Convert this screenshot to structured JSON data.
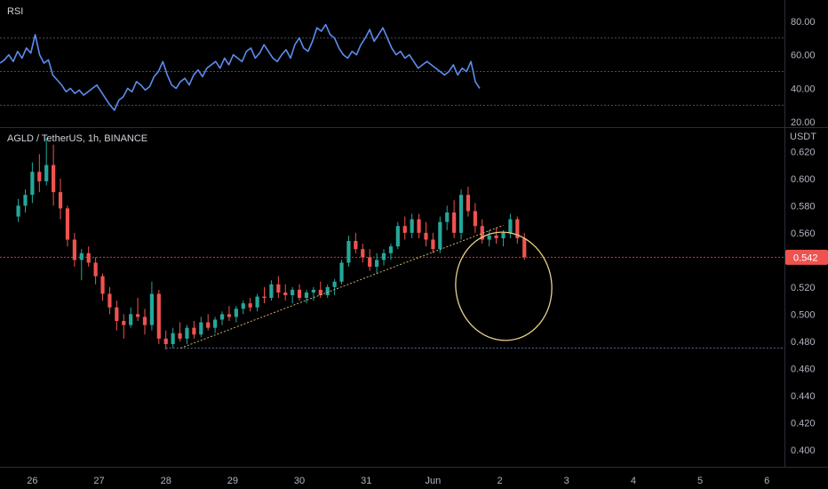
{
  "chart_data": [
    {
      "type": "line",
      "title": "RSI",
      "ylim": [
        18,
        82
      ],
      "y_ticks": [
        "80.00",
        "60.00",
        "40.00",
        "20.00"
      ],
      "y_tick_values": [
        80,
        60,
        40,
        20
      ],
      "levels": [
        70,
        50,
        30
      ],
      "series": [
        {
          "values": [
            55,
            57,
            60,
            56,
            62,
            58,
            64,
            61,
            72,
            60,
            55,
            57,
            48,
            45,
            42,
            38,
            40,
            37,
            39,
            36,
            38,
            40,
            42,
            38,
            34,
            30,
            27,
            33,
            35,
            40,
            38,
            44,
            42,
            39,
            41,
            47,
            50,
            56,
            48,
            42,
            40,
            44,
            46,
            42,
            48,
            51,
            47,
            52,
            54,
            56,
            52,
            58,
            54,
            60,
            58,
            56,
            62,
            64,
            58,
            61,
            66,
            62,
            58,
            56,
            60,
            63,
            58,
            66,
            70,
            64,
            62,
            68,
            76,
            74,
            78,
            72,
            70,
            64,
            60,
            58,
            62,
            60,
            66,
            70,
            75,
            68,
            72,
            76,
            70,
            64,
            60,
            62,
            58,
            60,
            56,
            52,
            54,
            56,
            54,
            52,
            50,
            48,
            50,
            54,
            48,
            52,
            50,
            56,
            44,
            40
          ]
        }
      ],
      "line_color": "#5b8def"
    },
    {
      "type": "candlestick",
      "title": "AGLD / TetherUS, 1h, BINANCE",
      "ylabel": "USDT",
      "ylim": [
        0.3875,
        0.6235
      ],
      "y_ticks": [
        "0.620",
        "0.600",
        "0.580",
        "0.560",
        "0.540",
        "0.520",
        "0.500",
        "0.480",
        "0.460",
        "0.440",
        "0.420",
        "0.400"
      ],
      "y_tick_values": [
        0.62,
        0.6,
        0.58,
        0.56,
        0.54,
        0.52,
        0.5,
        0.48,
        0.46,
        0.44,
        0.42,
        0.4
      ],
      "x_ticks": [
        "26",
        "27",
        "28",
        "29",
        "30",
        "31",
        "Jun",
        "2",
        "3",
        "4",
        "5",
        "6"
      ],
      "x_tick_values": [
        2,
        11.5,
        21,
        30.5,
        40,
        49.5,
        59,
        68.5,
        78,
        87.5,
        97,
        106.5
      ],
      "x_range": [
        -2.6,
        109
      ],
      "last_price": "0.542",
      "last_price_value": 0.542,
      "support_level": 0.475,
      "trendline": [
        [
          23.1,
          0.475
        ],
        [
          69,
          0.5655
        ]
      ],
      "ohlc": [
        [
          0.572,
          0.585,
          0.568,
          0.58
        ],
        [
          0.58,
          0.592,
          0.575,
          0.588
        ],
        [
          0.588,
          0.612,
          0.582,
          0.605
        ],
        [
          0.605,
          0.618,
          0.59,
          0.598
        ],
        [
          0.598,
          0.63,
          0.595,
          0.61
        ],
        [
          0.61,
          0.625,
          0.58,
          0.59
        ],
        [
          0.59,
          0.6,
          0.57,
          0.578
        ],
        [
          0.578,
          0.58,
          0.55,
          0.555
        ],
        [
          0.555,
          0.56,
          0.535,
          0.54
        ],
        [
          0.54,
          0.548,
          0.525,
          0.545
        ],
        [
          0.545,
          0.55,
          0.535,
          0.538
        ],
        [
          0.538,
          0.542,
          0.522,
          0.528
        ],
        [
          0.528,
          0.53,
          0.51,
          0.515
        ],
        [
          0.515,
          0.52,
          0.5,
          0.505
        ],
        [
          0.505,
          0.51,
          0.488,
          0.495
        ],
        [
          0.495,
          0.5,
          0.482,
          0.492
        ],
        [
          0.492,
          0.505,
          0.49,
          0.5
        ],
        [
          0.5,
          0.512,
          0.495,
          0.498
        ],
        [
          0.498,
          0.504,
          0.485,
          0.492
        ],
        [
          0.492,
          0.524,
          0.488,
          0.515
        ],
        [
          0.515,
          0.518,
          0.478,
          0.482
        ],
        [
          0.482,
          0.488,
          0.474,
          0.478
        ],
        [
          0.478,
          0.49,
          0.475,
          0.486
        ],
        [
          0.486,
          0.494,
          0.48,
          0.482
        ],
        [
          0.482,
          0.492,
          0.478,
          0.49
        ],
        [
          0.49,
          0.495,
          0.482,
          0.485
        ],
        [
          0.485,
          0.498,
          0.483,
          0.494
        ],
        [
          0.494,
          0.5,
          0.488,
          0.49
        ],
        [
          0.49,
          0.498,
          0.486,
          0.496
        ],
        [
          0.496,
          0.502,
          0.492,
          0.5
        ],
        [
          0.5,
          0.506,
          0.495,
          0.498
        ],
        [
          0.498,
          0.506,
          0.494,
          0.504
        ],
        [
          0.504,
          0.51,
          0.5,
          0.508
        ],
        [
          0.508,
          0.512,
          0.502,
          0.505
        ],
        [
          0.505,
          0.515,
          0.502,
          0.513
        ],
        [
          0.513,
          0.52,
          0.508,
          0.512
        ],
        [
          0.512,
          0.525,
          0.51,
          0.522
        ],
        [
          0.522,
          0.528,
          0.512,
          0.516
        ],
        [
          0.516,
          0.522,
          0.51,
          0.514
        ],
        [
          0.514,
          0.52,
          0.508,
          0.518
        ],
        [
          0.518,
          0.522,
          0.51,
          0.512
        ],
        [
          0.512,
          0.518,
          0.508,
          0.516
        ],
        [
          0.516,
          0.52,
          0.51,
          0.518
        ],
        [
          0.518,
          0.524,
          0.512,
          0.514
        ],
        [
          0.514,
          0.522,
          0.512,
          0.52
        ],
        [
          0.52,
          0.526,
          0.514,
          0.524
        ],
        [
          0.524,
          0.54,
          0.522,
          0.538
        ],
        [
          0.538,
          0.558,
          0.535,
          0.554
        ],
        [
          0.554,
          0.56,
          0.545,
          0.548
        ],
        [
          0.548,
          0.552,
          0.538,
          0.542
        ],
        [
          0.542,
          0.548,
          0.532,
          0.535
        ],
        [
          0.535,
          0.545,
          0.53,
          0.54
        ],
        [
          0.54,
          0.548,
          0.536,
          0.545
        ],
        [
          0.545,
          0.552,
          0.54,
          0.55
        ],
        [
          0.55,
          0.568,
          0.548,
          0.565
        ],
        [
          0.565,
          0.572,
          0.555,
          0.56
        ],
        [
          0.56,
          0.574,
          0.556,
          0.57
        ],
        [
          0.57,
          0.574,
          0.556,
          0.56
        ],
        [
          0.56,
          0.568,
          0.55,
          0.555
        ],
        [
          0.555,
          0.56,
          0.545,
          0.548
        ],
        [
          0.548,
          0.572,
          0.545,
          0.568
        ],
        [
          0.568,
          0.58,
          0.562,
          0.575
        ],
        [
          0.575,
          0.584,
          0.556,
          0.56
        ],
        [
          0.56,
          0.592,
          0.555,
          0.588
        ],
        [
          0.588,
          0.594,
          0.572,
          0.576
        ],
        [
          0.576,
          0.582,
          0.56,
          0.565
        ],
        [
          0.565,
          0.57,
          0.552,
          0.555
        ],
        [
          0.555,
          0.562,
          0.55,
          0.558
        ],
        [
          0.558,
          0.564,
          0.552,
          0.556
        ],
        [
          0.556,
          0.562,
          0.55,
          0.56
        ],
        [
          0.56,
          0.574,
          0.556,
          0.57
        ],
        [
          0.57,
          0.572,
          0.552,
          0.556
        ],
        [
          0.556,
          0.56,
          0.54,
          0.542
        ]
      ],
      "up_color": "#26a69a",
      "down_color": "#ef5350"
    }
  ]
}
